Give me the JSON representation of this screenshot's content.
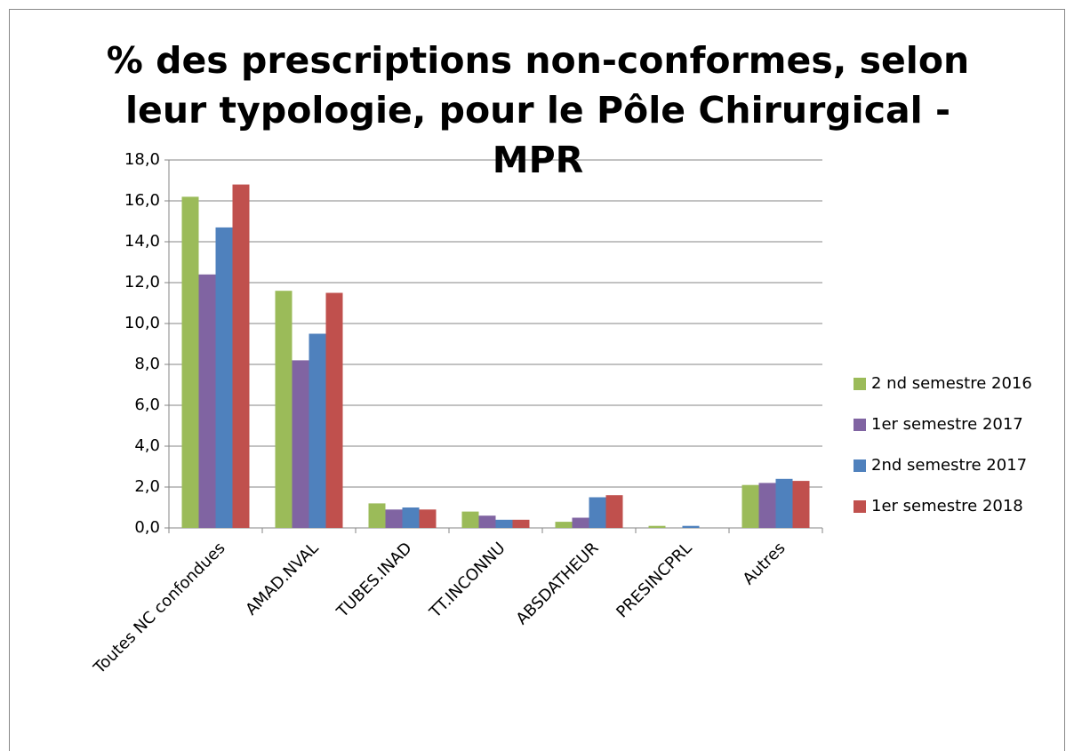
{
  "chart_data": {
    "type": "bar",
    "title": "% des prescriptions non-conformes, selon leur typologie, pour le Pôle Chirurgical - MPR",
    "categories": [
      "Toutes NC confondues",
      "AMAD.NVAL",
      "TUBES.INAD",
      "TT.INCONNU",
      "ABSDATHEUR",
      "PRESINCPRL",
      "Autres"
    ],
    "series": [
      {
        "name": "2 nd semestre 2016",
        "color": "#9bbb59",
        "values": [
          16.2,
          11.6,
          1.2,
          0.8,
          0.3,
          0.1,
          2.1
        ]
      },
      {
        "name": "1er semestre 2017",
        "color": "#8064a2",
        "values": [
          12.4,
          8.2,
          0.9,
          0.6,
          0.5,
          0.0,
          2.2
        ]
      },
      {
        "name": "2nd semestre 2017",
        "color": "#4f81bd",
        "values": [
          14.7,
          9.5,
          1.0,
          0.4,
          1.5,
          0.1,
          2.4
        ]
      },
      {
        "name": "1er semestre 2018",
        "color": "#c0504d",
        "values": [
          16.8,
          11.5,
          0.9,
          0.4,
          1.6,
          0.0,
          2.3
        ]
      }
    ],
    "ylim": [
      0,
      18
    ],
    "yticks": [
      {
        "value": 0,
        "label": "0,0"
      },
      {
        "value": 2,
        "label": "2,0"
      },
      {
        "value": 4,
        "label": "4,0"
      },
      {
        "value": 6,
        "label": "6,0"
      },
      {
        "value": 8,
        "label": "8,0"
      },
      {
        "value": 10,
        "label": "10,0"
      },
      {
        "value": 12,
        "label": "12,0"
      },
      {
        "value": 14,
        "label": "14,0"
      },
      {
        "value": 16,
        "label": "16,0"
      },
      {
        "value": 18,
        "label": "18,0"
      }
    ],
    "grid": true,
    "legend": "right"
  }
}
